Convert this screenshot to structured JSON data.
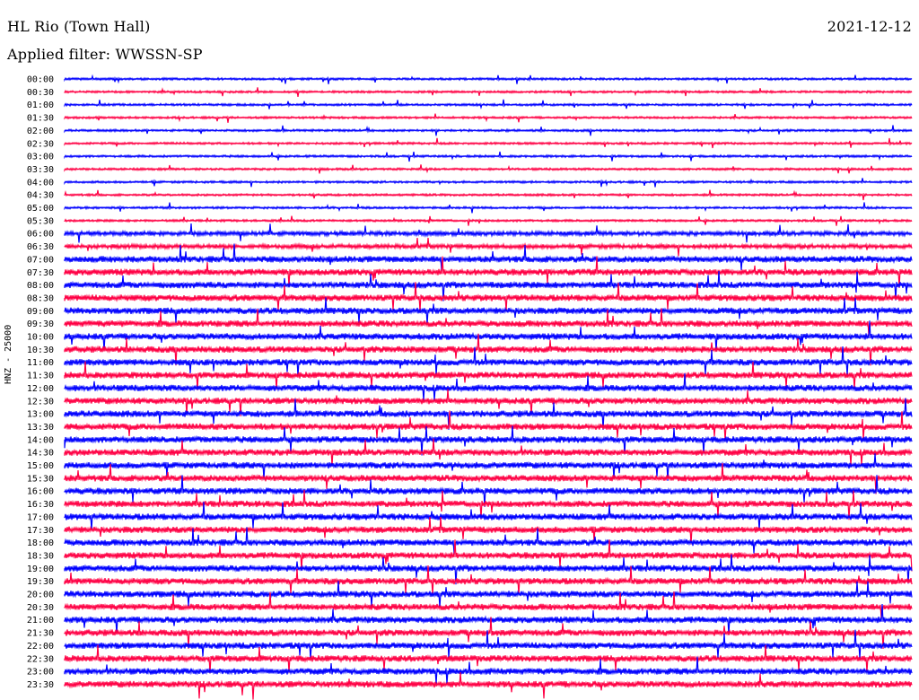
{
  "header": {
    "station": "HL Rio (Town Hall)",
    "date": "2021-12-12",
    "filter": "Applied filter: WWSSN-SP"
  },
  "chart_data": {
    "type": "line",
    "ylabel": "HNZ - 25000",
    "trace_colors": [
      "#0000ff",
      "#ff0044"
    ],
    "rows": [
      "00:00",
      "00:30",
      "01:00",
      "01:30",
      "02:00",
      "02:30",
      "03:00",
      "03:30",
      "04:00",
      "04:30",
      "05:00",
      "05:30",
      "06:00",
      "06:30",
      "07:00",
      "07:30",
      "08:00",
      "08:30",
      "09:00",
      "09:30",
      "10:00",
      "10:30",
      "11:00",
      "11:30",
      "12:00",
      "12:30",
      "13:00",
      "13:30",
      "14:00",
      "14:30",
      "15:00",
      "15:30",
      "16:00",
      "16:30",
      "17:00",
      "17:30",
      "18:00",
      "18:30",
      "19:00",
      "19:30",
      "20:00",
      "20:30",
      "21:00",
      "21:30",
      "22:00",
      "22:30",
      "23:00",
      "23:30"
    ],
    "noise_amplitude": [
      1,
      1,
      1,
      1,
      1,
      1,
      1,
      1,
      1,
      1,
      1,
      1,
      2,
      2,
      3,
      3,
      3,
      3,
      3,
      3,
      3,
      3,
      3,
      3,
      3,
      3,
      3,
      3,
      3,
      3,
      3,
      3,
      3,
      3,
      3,
      3,
      3,
      3,
      3,
      3,
      3,
      3,
      3,
      3,
      3,
      3,
      3,
      3
    ]
  }
}
